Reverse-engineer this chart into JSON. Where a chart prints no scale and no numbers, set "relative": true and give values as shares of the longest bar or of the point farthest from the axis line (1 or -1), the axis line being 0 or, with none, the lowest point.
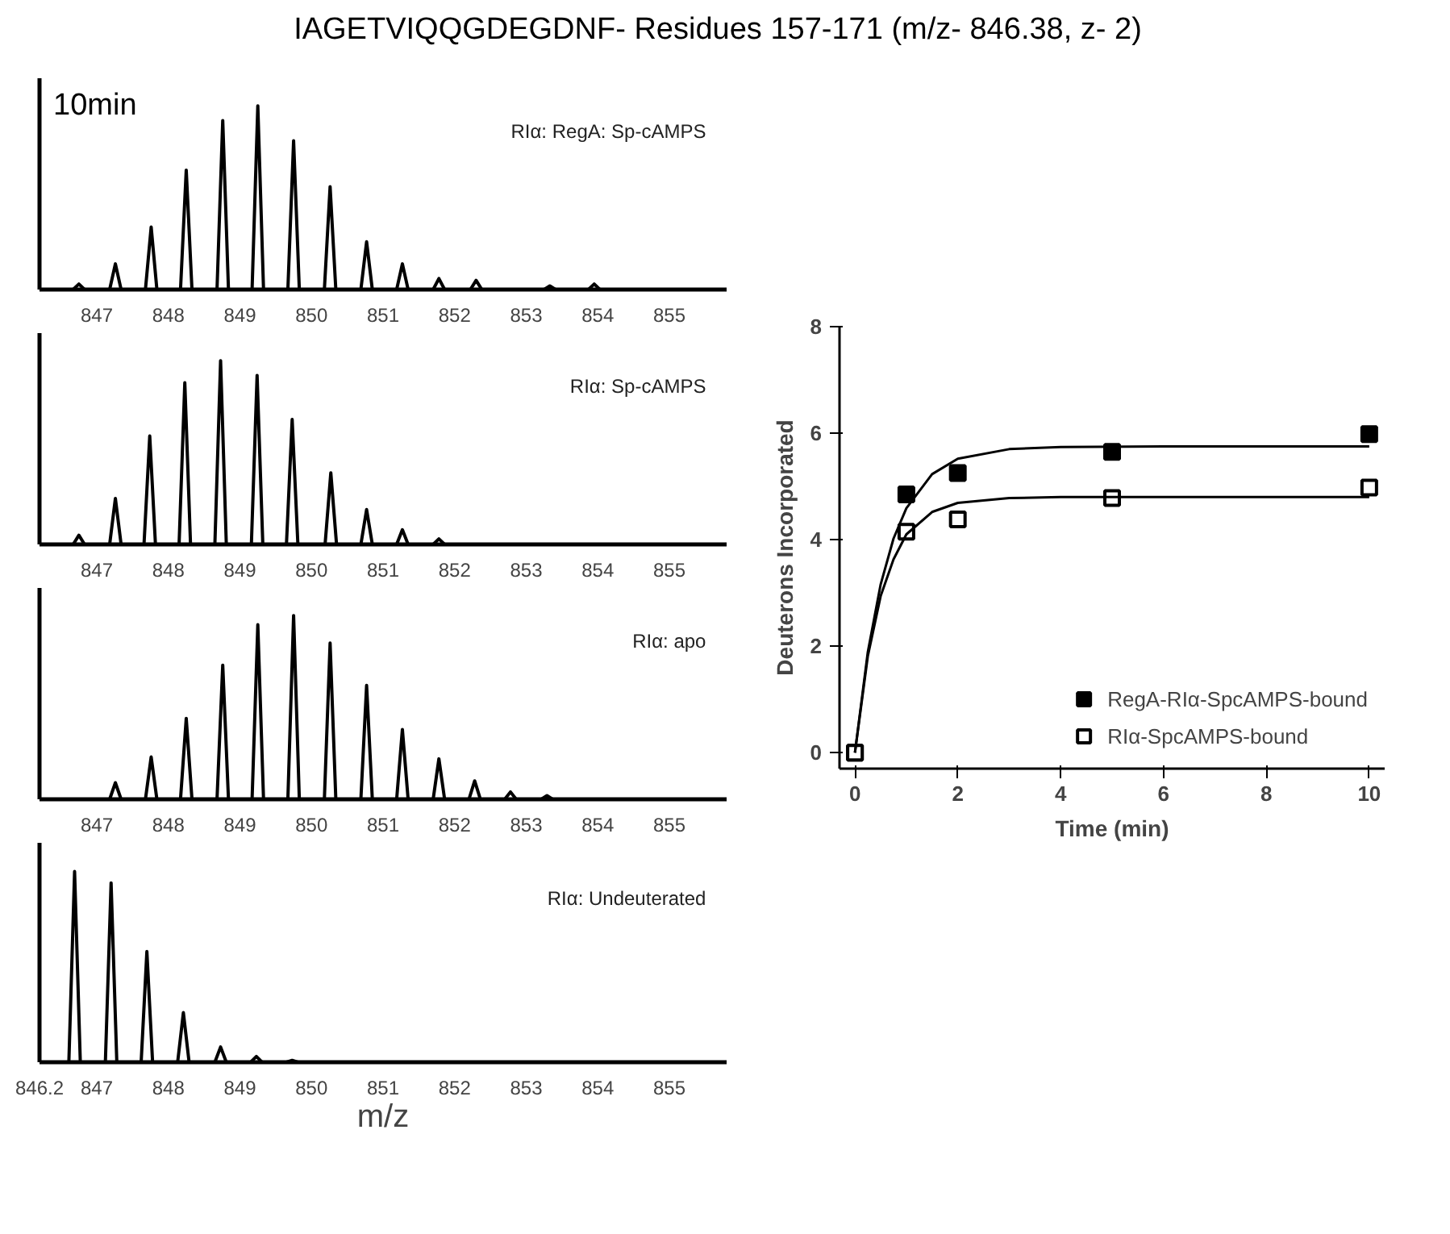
{
  "chart_data": [
    {
      "type": "line",
      "relative": true,
      "title": "IAGETVIQQGDEGDNF- Residues 157-171 (m/z- 846.38, z- 2)",
      "annotations": [
        "10min"
      ],
      "xlim": [
        846.2,
        855.8
      ],
      "xticks": [
        847,
        848,
        849,
        850,
        851,
        852,
        853,
        854,
        855
      ],
      "tick_labels": "x",
      "series": [
        {
          "name": "RIα: RegA: Sp-cAMPS",
          "color": "#000000",
          "x": [
            846.67,
            846.75,
            846.83,
            847.18,
            847.26,
            847.34,
            847.68,
            847.76,
            847.84,
            848.17,
            848.25,
            848.33,
            848.68,
            848.76,
            848.84,
            849.17,
            849.25,
            849.33,
            849.67,
            849.75,
            849.83,
            850.18,
            850.26,
            850.34,
            850.69,
            850.77,
            850.85,
            851.19,
            851.27,
            851.35,
            851.7,
            851.78,
            851.86,
            852.22,
            852.3,
            852.38,
            853.25,
            853.33,
            853.41,
            853.87,
            853.95,
            854.03
          ],
          "values": [
            0,
            0.03,
            0,
            0,
            0.14,
            0,
            0,
            0.34,
            0,
            0,
            0.65,
            0,
            0,
            0.92,
            0,
            0,
            1,
            0,
            0,
            0.81,
            0,
            0,
            0.56,
            0,
            0,
            0.26,
            0,
            0,
            0.14,
            0,
            0,
            0.06,
            0,
            0,
            0.05,
            0,
            0,
            0.02,
            0,
            0,
            0.03,
            0
          ]
        }
      ]
    },
    {
      "type": "line",
      "relative": true,
      "xlim": [
        846.2,
        855.8
      ],
      "xticks": [
        847,
        848,
        849,
        850,
        851,
        852,
        853,
        854,
        855
      ],
      "tick_labels": "x",
      "series": [
        {
          "name": "RIα: Sp-cAMPS",
          "color": "#000000",
          "x": [
            846.67,
            846.75,
            846.83,
            847.18,
            847.26,
            847.34,
            847.66,
            847.74,
            847.82,
            848.15,
            848.23,
            848.31,
            848.65,
            848.73,
            848.81,
            849.16,
            849.24,
            849.32,
            849.65,
            849.73,
            849.81,
            850.19,
            850.27,
            850.35,
            850.69,
            850.77,
            850.85,
            851.19,
            851.27,
            851.35,
            851.7,
            851.78,
            851.86
          ],
          "values": [
            0,
            0.05,
            0,
            0,
            0.25,
            0,
            0,
            0.59,
            0,
            0,
            0.88,
            0,
            0,
            1,
            0,
            0,
            0.92,
            0,
            0,
            0.68,
            0,
            0,
            0.39,
            0,
            0,
            0.19,
            0,
            0,
            0.08,
            0,
            0,
            0.03,
            0
          ]
        }
      ]
    },
    {
      "type": "line",
      "relative": true,
      "xlim": [
        846.2,
        855.8
      ],
      "xticks": [
        847,
        848,
        849,
        850,
        851,
        852,
        853,
        854,
        855
      ],
      "tick_labels": "x",
      "series": [
        {
          "name": "RIα: apo",
          "color": "#000000",
          "x": [
            847.18,
            847.26,
            847.34,
            847.68,
            847.76,
            847.84,
            848.17,
            848.25,
            848.33,
            848.68,
            848.76,
            848.84,
            849.17,
            849.25,
            849.33,
            849.67,
            849.75,
            849.83,
            850.18,
            850.26,
            850.34,
            850.69,
            850.77,
            850.85,
            851.19,
            851.27,
            851.35,
            851.7,
            851.78,
            851.86,
            852.2,
            852.28,
            852.36,
            852.7,
            852.78,
            852.86,
            853.21,
            853.29,
            853.37
          ],
          "values": [
            0,
            0.09,
            0,
            0,
            0.23,
            0,
            0,
            0.44,
            0,
            0,
            0.73,
            0,
            0,
            0.95,
            0,
            0,
            1,
            0,
            0,
            0.85,
            0,
            0,
            0.62,
            0,
            0,
            0.38,
            0,
            0,
            0.22,
            0,
            0,
            0.1,
            0,
            0,
            0.04,
            0,
            0,
            0.02,
            0
          ]
        }
      ]
    },
    {
      "type": "line",
      "relative": true,
      "xlabel": "m/z",
      "xlim": [
        846.2,
        855.8
      ],
      "xticks": [
        846.2,
        847,
        848,
        849,
        850,
        851,
        852,
        853,
        854,
        855
      ],
      "tick_labels": "x",
      "series": [
        {
          "name": "RIα: Undeuterated",
          "color": "#000000",
          "x": [
            846.61,
            846.69,
            846.77,
            847.12,
            847.2,
            847.28,
            847.62,
            847.7,
            847.78,
            848.13,
            848.21,
            848.29,
            848.65,
            848.73,
            848.81,
            849.15,
            849.23,
            849.31,
            849.65,
            849.73,
            849.81
          ],
          "values": [
            0,
            1,
            0,
            0,
            0.94,
            0,
            0,
            0.58,
            0,
            0,
            0.26,
            0,
            0,
            0.08,
            0,
            0,
            0.03,
            0,
            0,
            0.01,
            0
          ]
        }
      ]
    },
    {
      "type": "scatter",
      "xlabel": "Time (min)",
      "ylabel": "Deuterons Incorporated",
      "xlim": [
        -0.3,
        10.3
      ],
      "ylim": [
        -0.3,
        8
      ],
      "xticks": [
        0,
        2,
        4,
        6,
        8,
        10
      ],
      "yticks": [
        0,
        2,
        4,
        6,
        8
      ],
      "legend": "bottom right",
      "series": [
        {
          "name": "RegA-RIα-SpcAMPS-bound",
          "color": "#000000",
          "marker": "square",
          "x": [
            0,
            1,
            2,
            5,
            10
          ],
          "values": [
            0,
            4.85,
            5.25,
            5.65,
            5.98
          ]
        },
        {
          "name": "RIα-SpcAMPS-bound",
          "color": "#000000",
          "marker": "square",
          "x": [
            0,
            1,
            2,
            5,
            10
          ],
          "values": [
            0,
            4.15,
            4.38,
            4.78,
            4.98
          ]
        },
        {
          "type": "line",
          "color": "#000000",
          "x": [
            0,
            0.25,
            0.5,
            0.75,
            1,
            1.5,
            2,
            3,
            4,
            6,
            10
          ],
          "values": [
            0,
            1.89,
            3.16,
            4.02,
            4.59,
            5.23,
            5.52,
            5.7,
            5.74,
            5.75,
            5.75
          ]
        },
        {
          "type": "line",
          "color": "#000000",
          "x": [
            0,
            0.25,
            0.5,
            0.75,
            1,
            1.5,
            2,
            3,
            4,
            6,
            10
          ],
          "values": [
            0,
            1.81,
            2.94,
            3.63,
            4.1,
            4.52,
            4.69,
            4.78,
            4.8,
            4.8,
            4.8
          ]
        }
      ]
    }
  ]
}
